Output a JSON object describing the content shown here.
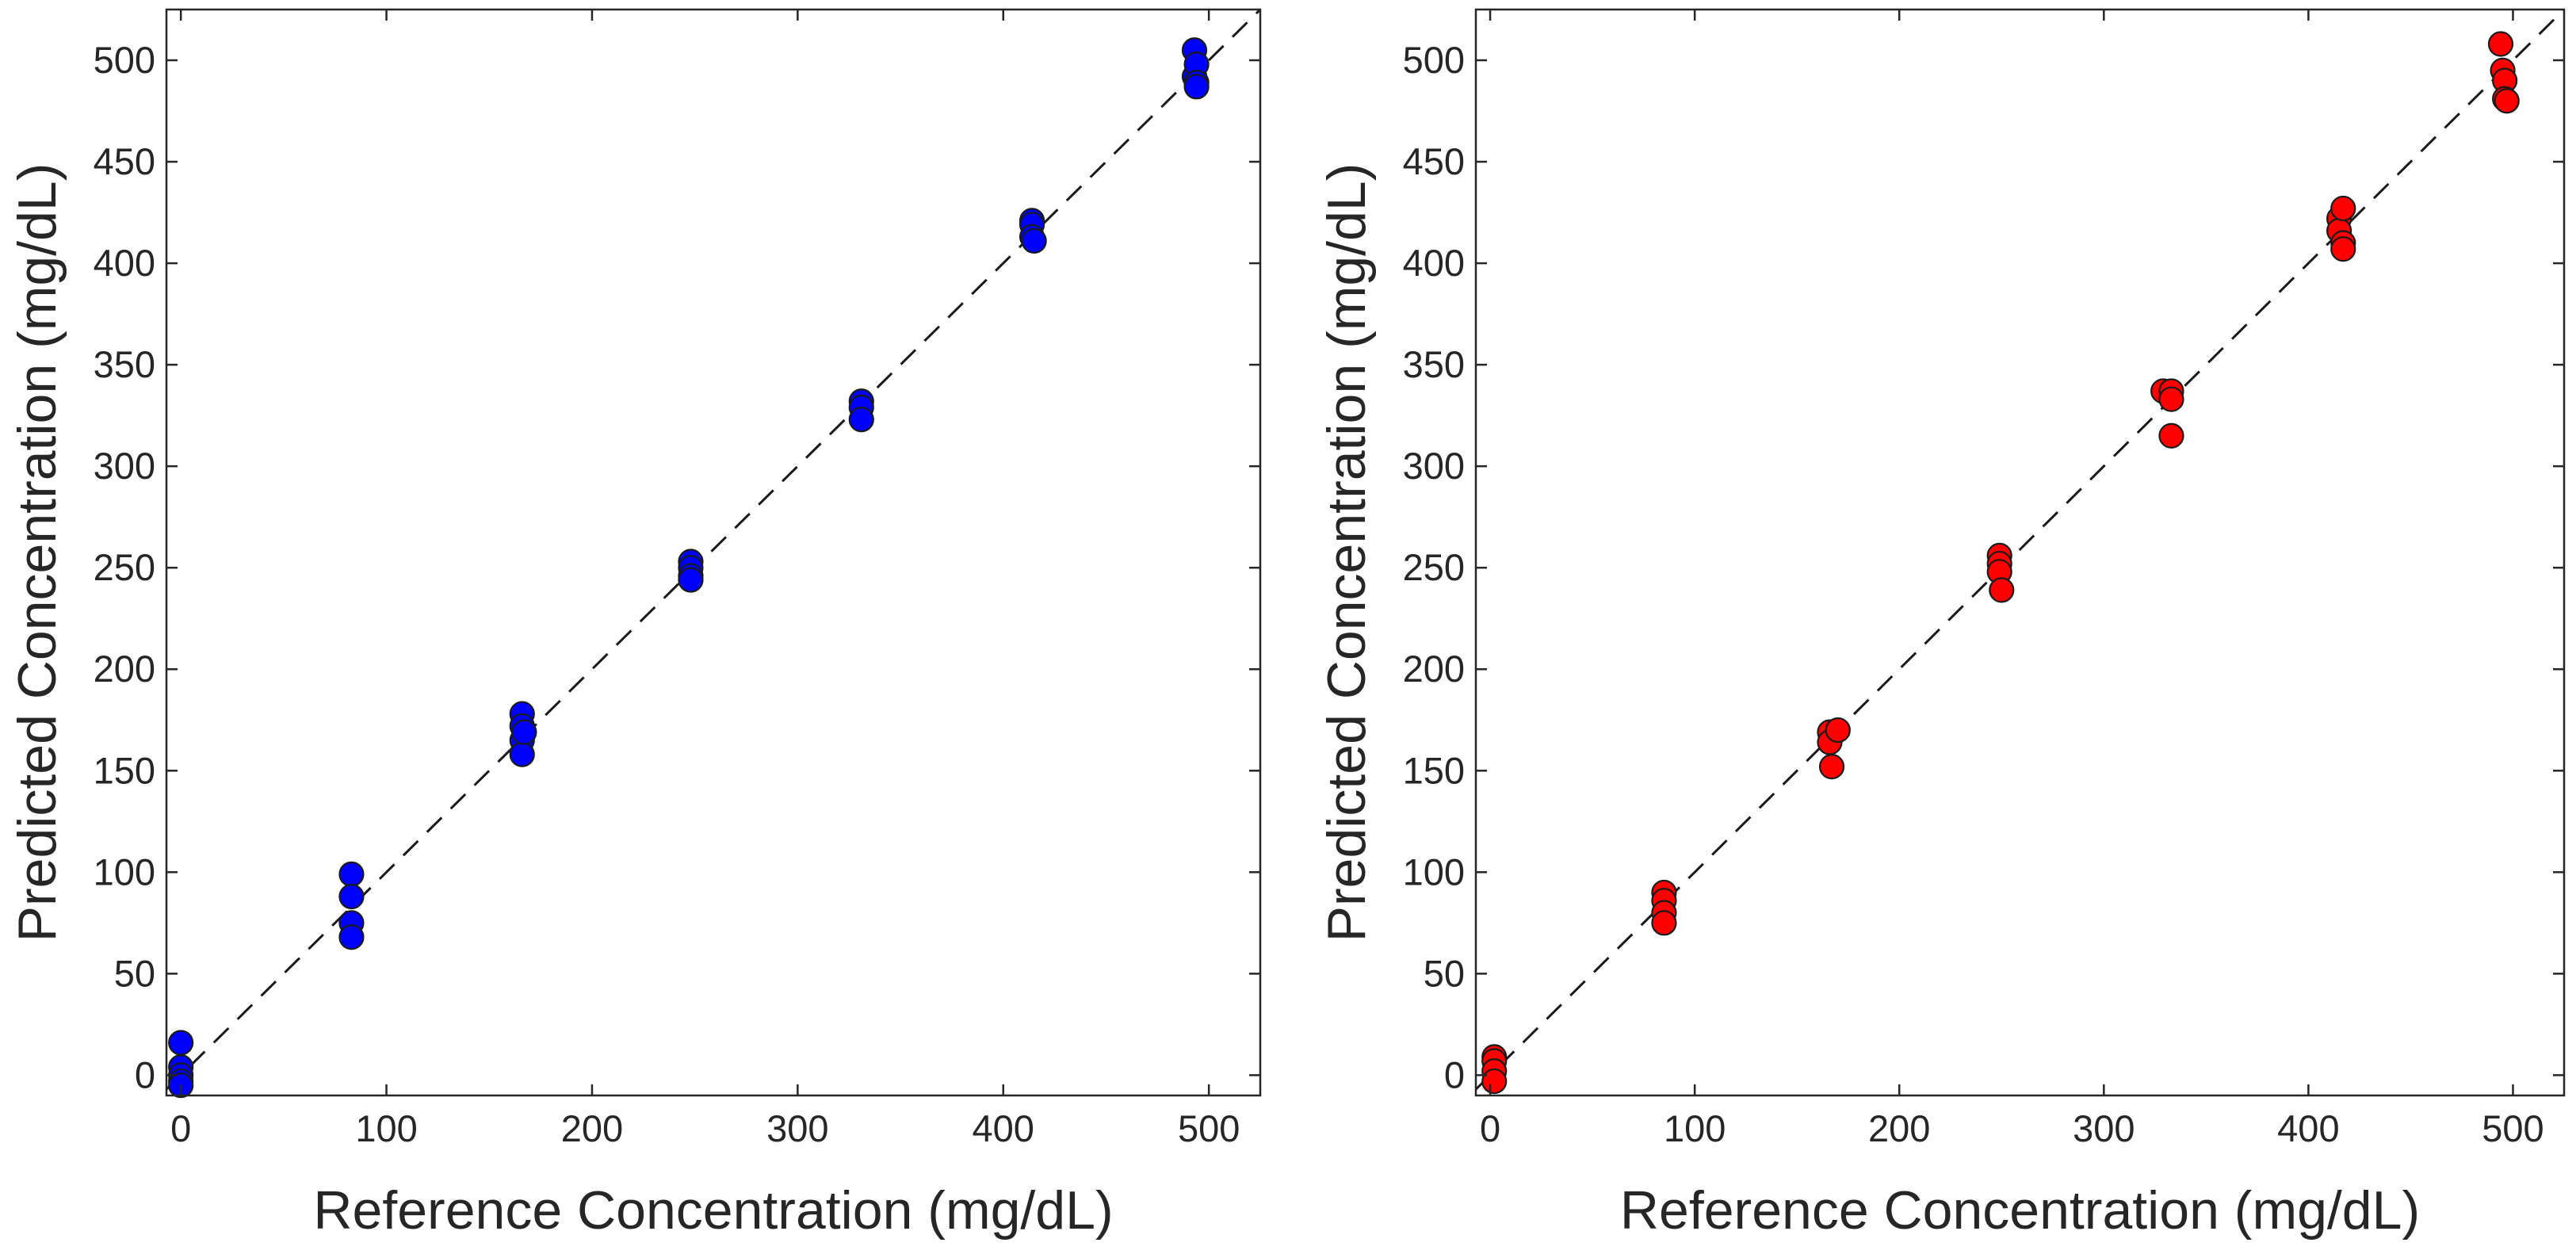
{
  "chart_data": [
    {
      "type": "scatter",
      "panel": "left",
      "xlabel": "Reference Concentration (mg/dL)",
      "ylabel": "Predicted Concentration (mg/dL)",
      "xlim": [
        -7,
        525
      ],
      "ylim": [
        -10,
        525
      ],
      "xticks": [
        0,
        100,
        200,
        300,
        400,
        500
      ],
      "yticks": [
        0,
        50,
        100,
        150,
        200,
        250,
        300,
        350,
        400,
        450,
        500
      ],
      "grid": false,
      "identity_line": true,
      "marker_color": "#0000FF",
      "x": [
        0,
        0,
        0,
        0,
        0,
        83,
        83,
        83,
        83,
        166,
        166,
        166,
        166,
        167,
        248,
        248,
        248,
        248,
        331,
        331,
        331,
        414,
        414,
        414,
        415,
        493,
        493,
        494,
        494,
        494
      ],
      "y": [
        16,
        4,
        0,
        -3,
        -5,
        99,
        88,
        75,
        68,
        178,
        172,
        165,
        158,
        169,
        253,
        250,
        246,
        244,
        332,
        329,
        323,
        421,
        419,
        413,
        411,
        505,
        492,
        498,
        489,
        487
      ]
    },
    {
      "type": "scatter",
      "panel": "right",
      "xlabel": "Reference Concentration (mg/dL)",
      "ylabel": "Predicted Concentration (mg/dL)",
      "xlim": [
        -7,
        525
      ],
      "ylim": [
        -10,
        525
      ],
      "xticks": [
        0,
        100,
        200,
        300,
        400,
        500
      ],
      "yticks": [
        0,
        50,
        100,
        150,
        200,
        250,
        300,
        350,
        400,
        450,
        500
      ],
      "grid": false,
      "identity_line": true,
      "marker_color": "#FF0000",
      "x": [
        2,
        2,
        2,
        2,
        85,
        85,
        85,
        85,
        166,
        166,
        167,
        170,
        249,
        249,
        249,
        250,
        329,
        333,
        333,
        333,
        415,
        415,
        417,
        417,
        417,
        494,
        495,
        496,
        496,
        497
      ],
      "y": [
        9,
        7,
        2,
        -3,
        90,
        86,
        80,
        75,
        169,
        164,
        152,
        170,
        256,
        252,
        248,
        239,
        337,
        337,
        333,
        315,
        422,
        416,
        427,
        410,
        407,
        508,
        495,
        490,
        481,
        480
      ]
    }
  ]
}
